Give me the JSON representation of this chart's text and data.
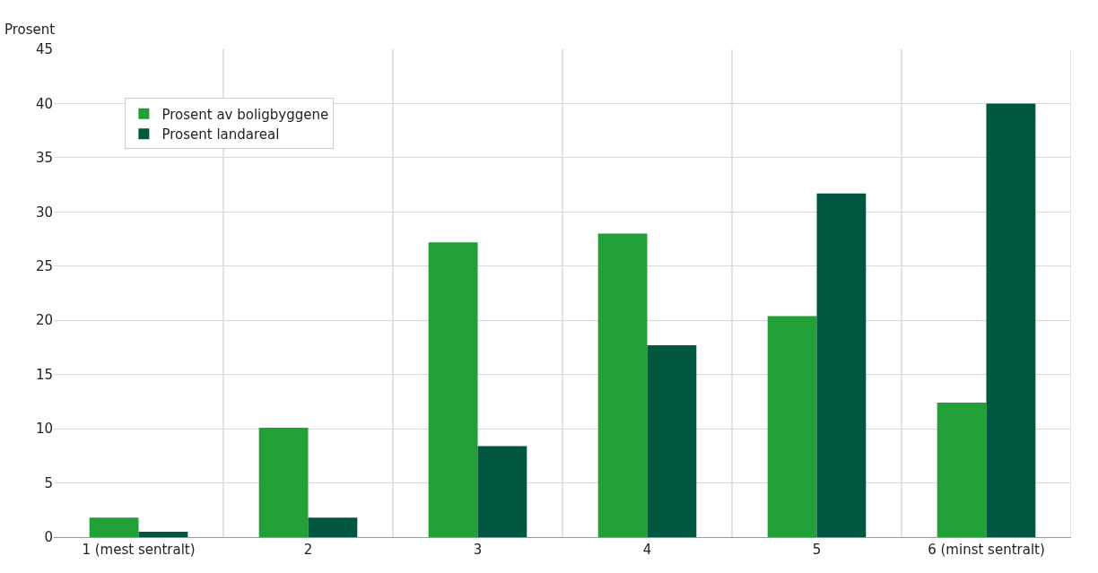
{
  "chart_data": {
    "type": "bar",
    "ylabel": "Prosent",
    "categories": [
      "1 (mest sentralt)",
      "2",
      "3",
      "4",
      "5",
      "6 (minst sentralt)"
    ],
    "series": [
      {
        "name": "Prosent av boligbyggene",
        "color": "#21a038",
        "values": [
          1.8,
          10.1,
          27.2,
          28.0,
          20.4,
          12.4
        ]
      },
      {
        "name": "Prosent landareal",
        "color": "#00573f",
        "values": [
          0.5,
          1.8,
          8.4,
          17.7,
          31.7,
          40.0
        ]
      }
    ],
    "ylim": [
      0,
      45
    ],
    "yticks": [
      0,
      5,
      10,
      15,
      20,
      25,
      30,
      35,
      40,
      45
    ],
    "grid": true,
    "legend": "top left"
  }
}
